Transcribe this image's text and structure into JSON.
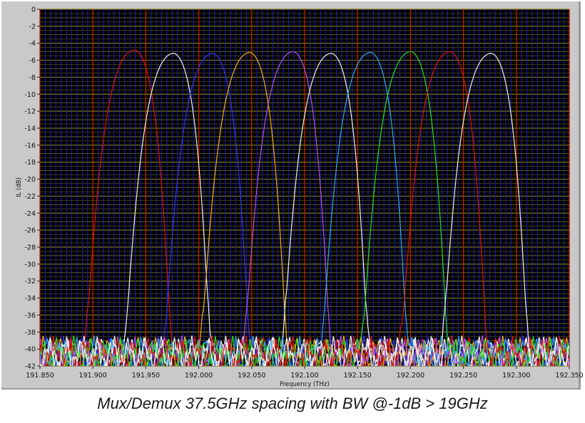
{
  "chart_data": {
    "type": "line",
    "title": "",
    "caption": "Mux/Demux 37.5GHz spacing with BW @-1dB > 19GHz",
    "xlabel": "Frequency (THz)",
    "ylabel": "IL (dB)",
    "xlim": [
      191.85,
      192.35
    ],
    "ylim": [
      -42,
      0
    ],
    "xticks": [
      "191.850",
      "191.900",
      "191.950",
      "192.000",
      "192.050",
      "192.100",
      "192.150",
      "192.200",
      "192.250",
      "192.300",
      "192.350"
    ],
    "yticks": [
      "0",
      "-2",
      "-4",
      "-6",
      "-8",
      "-10",
      "-12",
      "-14",
      "-16",
      "-18",
      "-20",
      "-22",
      "-24",
      "-26",
      "-28",
      "-30",
      "-32",
      "-34",
      "-36",
      "-38",
      "-40",
      "-42"
    ],
    "grid": true,
    "background": "#000000",
    "grid_colors": {
      "minor_vertical": "#1a1ad0",
      "major_vertical": "#c01818",
      "horizontal": "#6e6a00"
    },
    "noise_floor_db": -40,
    "channels": [
      {
        "center_thz": 191.939,
        "peak_il_db": -4.8,
        "color": "#e01010"
      },
      {
        "center_thz": 191.976,
        "peak_il_db": -5.2,
        "color": "#f0f0f0"
      },
      {
        "center_thz": 192.013,
        "peak_il_db": -5.2,
        "color": "#3434f0"
      },
      {
        "center_thz": 192.048,
        "peak_il_db": -5.1,
        "color": "#f0b020"
      },
      {
        "center_thz": 192.089,
        "peak_il_db": -5.0,
        "color": "#b050f0"
      },
      {
        "center_thz": 192.125,
        "peak_il_db": -5.2,
        "color": "#f0f0f0"
      },
      {
        "center_thz": 192.162,
        "peak_il_db": -5.1,
        "color": "#30a8f0"
      },
      {
        "center_thz": 192.2,
        "peak_il_db": -5.0,
        "color": "#20e020"
      },
      {
        "center_thz": 192.237,
        "peak_il_db": -5.0,
        "color": "#e01010"
      },
      {
        "center_thz": 192.276,
        "peak_il_db": -5.2,
        "color": "#f0f0f0"
      }
    ]
  }
}
